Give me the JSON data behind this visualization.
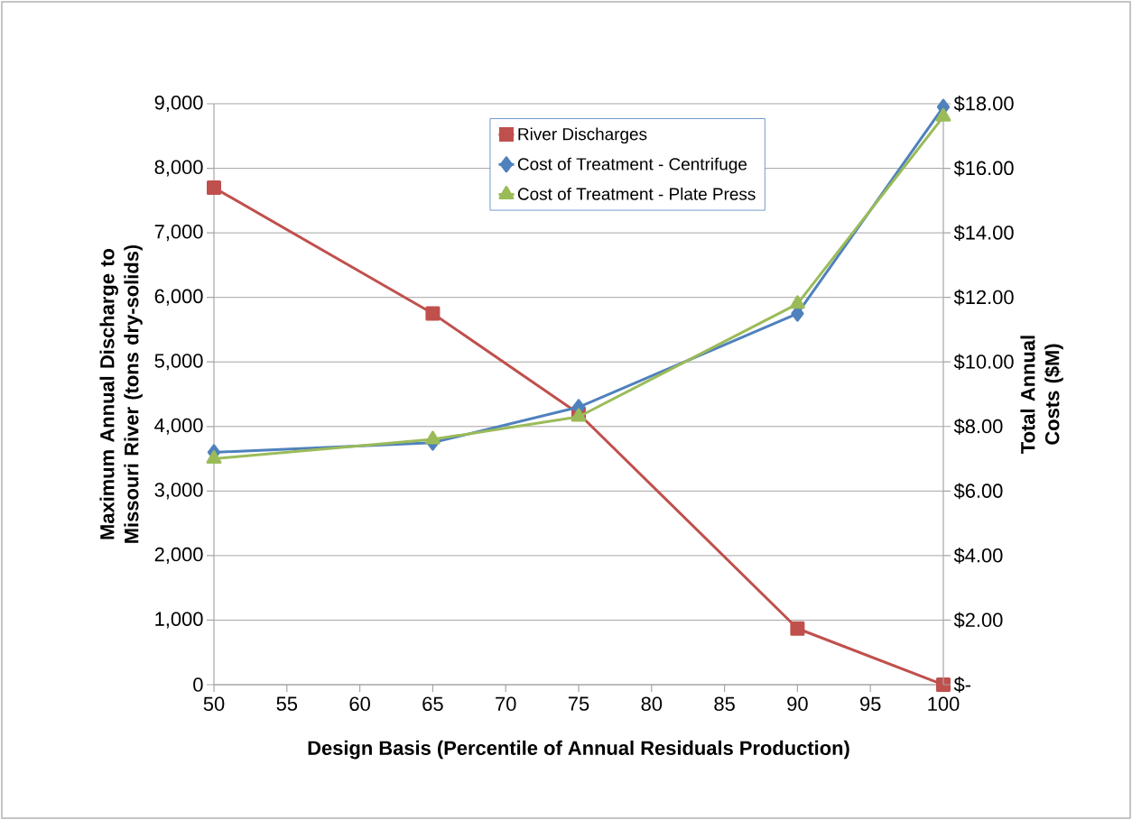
{
  "chart_data": {
    "type": "line",
    "xlabel": "Design Basis (Percentile of Annual Residuals Production)",
    "ylabel": "Maximum Annual Discharge to Missouri River (tons dry-solids)",
    "y2label": "Total Annual Costs ($M)",
    "x": [
      50,
      65,
      75,
      90,
      100
    ],
    "xlim": [
      50,
      100
    ],
    "xticks": [
      50,
      55,
      60,
      65,
      70,
      75,
      80,
      85,
      90,
      95,
      100
    ],
    "ylim": [
      0,
      9000
    ],
    "yticks": [
      {
        "value": 0,
        "label": "0"
      },
      {
        "value": 1000,
        "label": "1,000"
      },
      {
        "value": 2000,
        "label": "2,000"
      },
      {
        "value": 3000,
        "label": "3,000"
      },
      {
        "value": 4000,
        "label": "4,000"
      },
      {
        "value": 5000,
        "label": "5,000"
      },
      {
        "value": 6000,
        "label": "6,000"
      },
      {
        "value": 7000,
        "label": "7,000"
      },
      {
        "value": 8000,
        "label": "8,000"
      },
      {
        "value": 9000,
        "label": "9,000"
      }
    ],
    "y2lim": [
      0,
      18
    ],
    "y2ticks": [
      {
        "value": 0,
        "label": "$-"
      },
      {
        "value": 2,
        "label": "$2.00"
      },
      {
        "value": 4,
        "label": "$4.00"
      },
      {
        "value": 6,
        "label": "$6.00"
      },
      {
        "value": 8,
        "label": "$8.00"
      },
      {
        "value": 10,
        "label": "$10.00"
      },
      {
        "value": 12,
        "label": "$12.00"
      },
      {
        "value": 14,
        "label": "$14.00"
      },
      {
        "value": 16,
        "label": "$16.00"
      },
      {
        "value": 18,
        "label": "$18.00"
      }
    ],
    "series": [
      {
        "name": "River Discharges",
        "color": "#c0504d",
        "marker": "square",
        "values": [
          7700,
          5750,
          4200,
          870,
          0
        ]
      },
      {
        "name": "Cost of Treatment - Centrifuge",
        "color": "#4f81bd",
        "marker": "diamond",
        "axis": "y2",
        "values": [
          7.2,
          7.5,
          8.6,
          11.5,
          17.9
        ]
      },
      {
        "name": "Cost of Treatment - Plate Press",
        "color": "#9bbb59",
        "marker": "triangle",
        "axis": "y2",
        "values": [
          7.0,
          7.6,
          8.3,
          11.8,
          17.6
        ]
      }
    ],
    "grid": "y",
    "legend": "top",
    "line_style": "solid"
  }
}
